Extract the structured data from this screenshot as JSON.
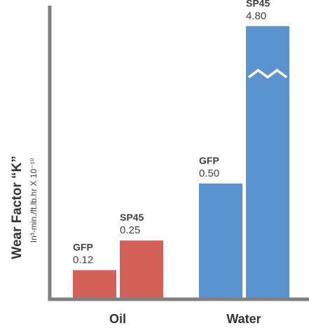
{
  "chart_data": {
    "type": "bar",
    "title": "",
    "xlabel": "",
    "ylabel": "Wear Factor “K”",
    "ylabel_unit": "In³-min./ft.lb.hr X 10⁻¹⁰",
    "categories": [
      "Oil",
      "Water"
    ],
    "series": [
      {
        "name": "GFP",
        "values": [
          0.12,
          0.5
        ]
      },
      {
        "name": "SP45",
        "values": [
          0.25,
          4.8
        ]
      }
    ],
    "value_labels": [
      [
        "0.12",
        "0.25"
      ],
      [
        "0.50",
        "4.80"
      ]
    ],
    "axis_break": {
      "above": 0.6,
      "at_display": 0.9,
      "top": 4.8,
      "top_display": 1.19
    },
    "ylim": [
      0,
      1.28
    ],
    "grid": false,
    "legend": "none",
    "colors": {
      "Oil": "#D4605A",
      "Water": "#5B93CE",
      "axis": "#808080"
    }
  }
}
